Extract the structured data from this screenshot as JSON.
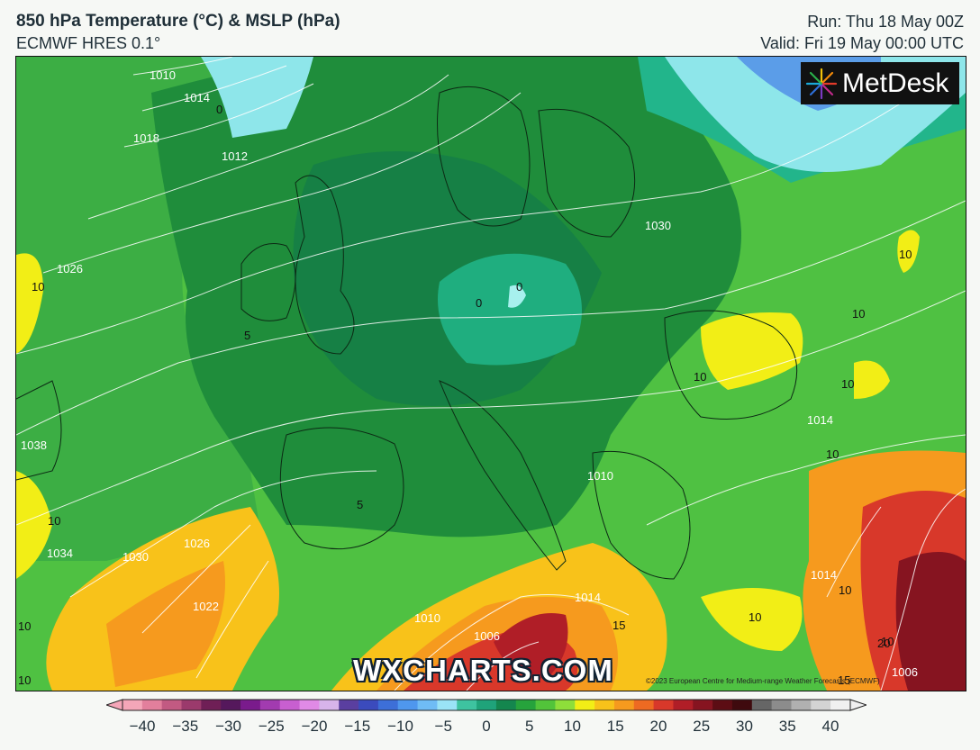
{
  "header": {
    "title": "850 hPa Temperature (°C) & MSLP (hPa)",
    "model": "ECMWF HRES 0.1°",
    "run": "Run: Thu 18 May 00Z",
    "valid": "Valid: Fri 19 May 00:00 UTC"
  },
  "logo": {
    "text": "MetDesk",
    "icon": "metdesk-starburst-icon"
  },
  "watermark": "WXCHARTS.COM",
  "credit": "©2023 European Centre for Medium-range Weather Forecasts (ECMWF)",
  "colorbar": {
    "ticks": [
      "−40",
      "−35",
      "−30",
      "−25",
      "−20",
      "−15",
      "−10",
      "−5",
      "0",
      "5",
      "10",
      "15",
      "20",
      "25",
      "30",
      "35",
      "40"
    ],
    "colors": [
      "#f4a6b8",
      "#e27f9c",
      "#c25a82",
      "#9b3a6c",
      "#6f1f56",
      "#55185c",
      "#7a1b8c",
      "#a23bb0",
      "#c85fd0",
      "#e08ae6",
      "#d7b4ea",
      "#5a3fa0",
      "#3b4bbd",
      "#3d6fd8",
      "#4f97ee",
      "#6fbcf5",
      "#9ae3f6",
      "#3ec3a0",
      "#1fa37a",
      "#14864e",
      "#26a33c",
      "#52c43a",
      "#8ede3a",
      "#f2ee16",
      "#f8c21a",
      "#f69a1e",
      "#ee6a22",
      "#d8382a",
      "#b01e27",
      "#861420",
      "#5c0d14",
      "#3f0a0e",
      "#666666",
      "#8c8c8c",
      "#b0b0b0",
      "#d3d3d3",
      "#f0f0f0"
    ]
  },
  "map_labels": {
    "isobars": [
      "1010",
      "1014",
      "1018",
      "1012",
      "1026",
      "1030",
      "1038",
      "1034",
      "1030",
      "1026",
      "1022",
      "1010",
      "1006",
      "1014",
      "1014",
      "1006",
      "1010",
      "1014"
    ],
    "temps": [
      "0",
      "10",
      "5",
      "0",
      "0",
      "10",
      "10",
      "10",
      "10",
      "10",
      "10",
      "10",
      "5",
      "15",
      "10",
      "10",
      "10",
      "10",
      "20",
      "15"
    ]
  },
  "palette": {
    "sea_green": "#4fc142",
    "deep_green": "#1e8a3a",
    "mid_green": "#2fa44a",
    "teal": "#21b08f",
    "cyan": "#8ee6ea",
    "blue": "#5b9de8",
    "yellow": "#f2ee16",
    "orange": "#f59a1f",
    "red": "#d8382a",
    "dark_red": "#6a0f12"
  }
}
